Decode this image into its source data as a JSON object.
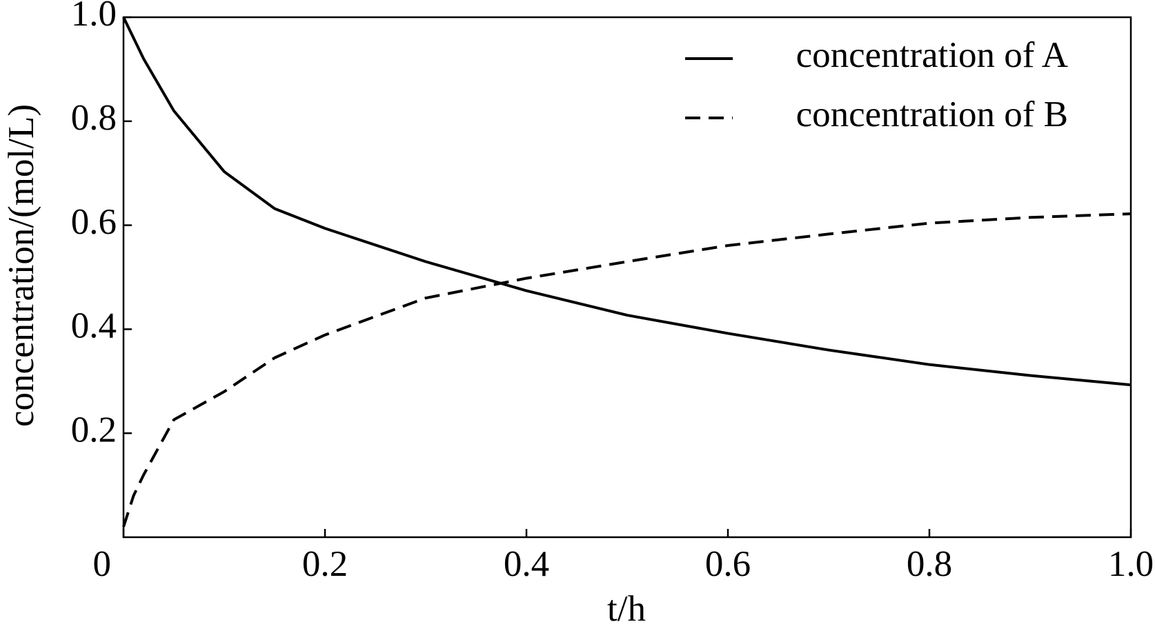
{
  "chart_data": {
    "type": "line",
    "xlabel": "t/h",
    "ylabel": "concentration/(mol/L)",
    "x": [
      0,
      0.01,
      0.02,
      0.05,
      0.1,
      0.15,
      0.2,
      0.3,
      0.4,
      0.5,
      0.6,
      0.7,
      0.8,
      0.9,
      1.0
    ],
    "series": [
      {
        "name": "concentration of A",
        "color": "#000000",
        "style": "solid",
        "values": [
          1.0,
          0.96,
          0.92,
          0.82,
          0.703,
          0.632,
          0.594,
          0.53,
          0.474,
          0.427,
          0.392,
          0.36,
          0.332,
          0.311,
          0.293
        ]
      },
      {
        "name": "concentration of B",
        "color": "#000000",
        "style": "dashed",
        "values": [
          0.02,
          0.08,
          0.12,
          0.226,
          0.28,
          0.345,
          0.389,
          0.46,
          0.498,
          0.53,
          0.561,
          0.583,
          0.604,
          0.615,
          0.622
        ]
      }
    ],
    "xlim": [
      0,
      1
    ],
    "ylim": [
      0,
      1
    ],
    "xticks": [
      0,
      0.2,
      0.4,
      0.6,
      0.8,
      {
        "value": 1,
        "label": "1.0"
      }
    ],
    "yticks": [
      0.2,
      0.4,
      0.6,
      0.8,
      {
        "value": 1,
        "label": "1.0"
      }
    ],
    "legend": "upper right"
  }
}
